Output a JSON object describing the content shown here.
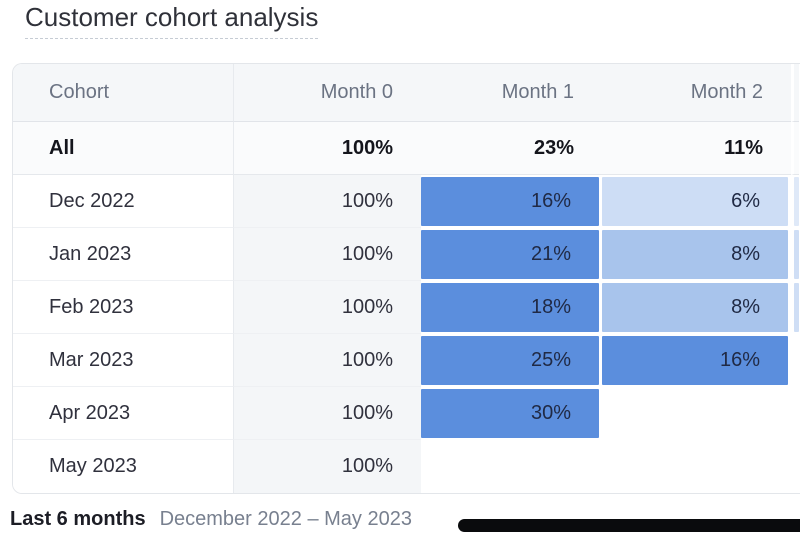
{
  "title": "Customer cohort analysis",
  "table": {
    "columns": [
      {
        "label": "Cohort"
      },
      {
        "label": "Month 0"
      },
      {
        "label": "Month 1"
      },
      {
        "label": "Month 2"
      }
    ],
    "all_row": {
      "label": "All",
      "cells": [
        {
          "value": "100%"
        },
        {
          "value": "23%"
        },
        {
          "value": "11%"
        },
        {}
      ]
    },
    "rows": [
      {
        "label": "Dec 2022",
        "cells": [
          {
            "value": "100%"
          },
          {
            "value": "16%",
            "bg": "#5b8edd"
          },
          {
            "value": "6%",
            "bg": "#cdddf5"
          },
          {
            "bg": "#dfe9f8"
          }
        ]
      },
      {
        "label": "Jan 2023",
        "cells": [
          {
            "value": "100%"
          },
          {
            "value": "21%",
            "bg": "#5b8edd"
          },
          {
            "value": "8%",
            "bg": "#a8c4ec"
          },
          {
            "bg": "#cfdef5"
          }
        ]
      },
      {
        "label": "Feb 2023",
        "cells": [
          {
            "value": "100%"
          },
          {
            "value": "18%",
            "bg": "#5b8edd"
          },
          {
            "value": "8%",
            "bg": "#a8c4ec"
          },
          {
            "bg": "#cfdef5"
          }
        ]
      },
      {
        "label": "Mar 2023",
        "cells": [
          {
            "value": "100%"
          },
          {
            "value": "25%",
            "bg": "#5b8edd"
          },
          {
            "value": "16%",
            "bg": "#5b8edd"
          },
          {}
        ]
      },
      {
        "label": "Apr 2023",
        "cells": [
          {
            "value": "100%"
          },
          {
            "value": "30%",
            "bg": "#5b8edd"
          },
          {},
          {}
        ]
      },
      {
        "label": "May 2023",
        "cells": [
          {
            "value": "100%"
          },
          {},
          {},
          {}
        ]
      }
    ]
  },
  "footer": {
    "range_label": "Last 6 months",
    "range_detail": "December 2022 – May 2023"
  },
  "colors": {
    "heat_strong": "#5b8edd",
    "heat_medium": "#a8c4ec",
    "heat_light": "#cdddf5",
    "header_bg": "#f5f7f9",
    "month0_bg": "#f4f6f8",
    "summary_bg": "#fafbfc",
    "scrollbar": "#0a0b0d"
  },
  "chart_data": {
    "type": "heatmap",
    "title": "Customer cohort analysis",
    "columns": [
      "Month 0",
      "Month 1",
      "Month 2"
    ],
    "rows": [
      "All",
      "Dec 2022",
      "Jan 2023",
      "Feb 2023",
      "Mar 2023",
      "Apr 2023",
      "May 2023"
    ],
    "values_pct": [
      [
        100,
        23,
        11
      ],
      [
        100,
        16,
        6
      ],
      [
        100,
        21,
        8
      ],
      [
        100,
        18,
        8
      ],
      [
        100,
        25,
        16
      ],
      [
        100,
        30,
        null
      ],
      [
        100,
        null,
        null
      ]
    ],
    "period_label": "Last 6 months",
    "period_range": "December 2022 – May 2023"
  }
}
